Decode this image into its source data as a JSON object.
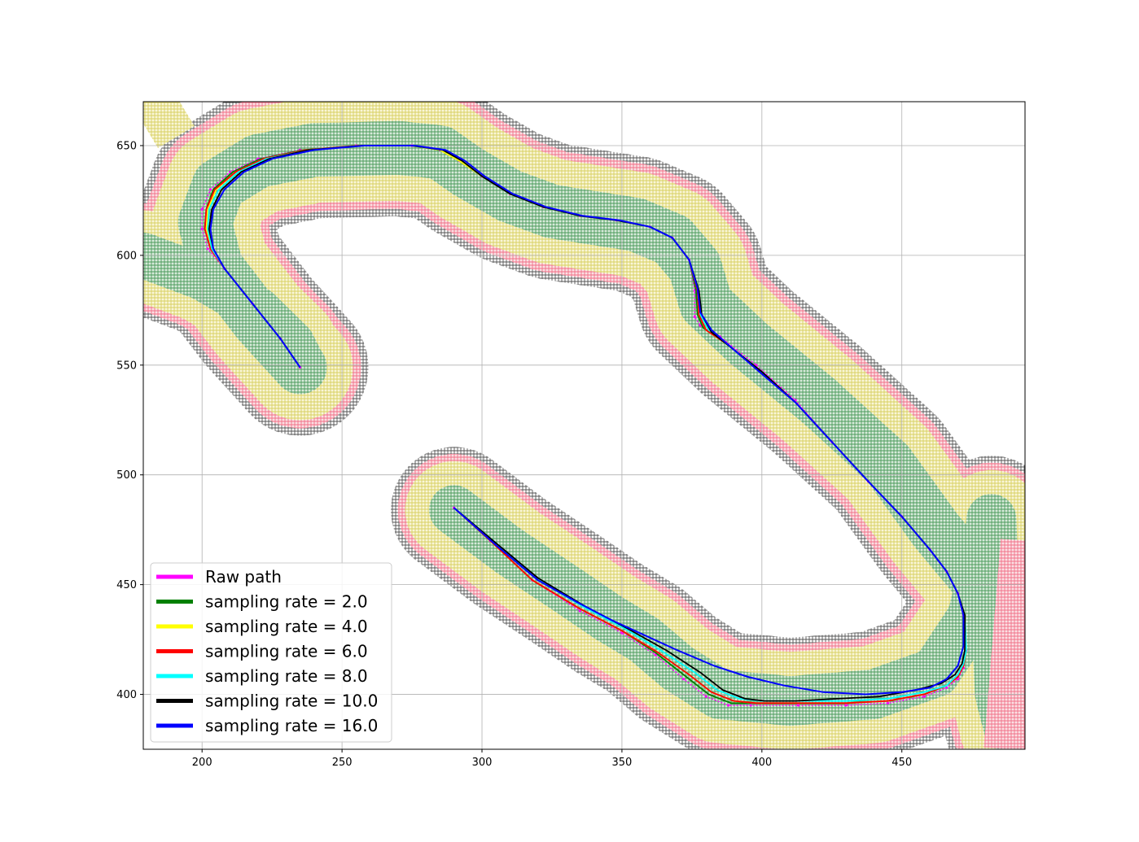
{
  "chart_data": {
    "type": "line",
    "title": "",
    "xlabel": "",
    "ylabel": "",
    "xlim": [
      179,
      494
    ],
    "ylim": [
      375,
      670
    ],
    "xticks": [
      200,
      250,
      300,
      350,
      400,
      450
    ],
    "yticks": [
      400,
      450,
      500,
      550,
      600,
      650
    ],
    "grid": true,
    "legend_position": "lower-left",
    "background_map": {
      "description_layers": [
        "obstacle",
        "danger",
        "caution",
        "safe"
      ],
      "colors": {
        "obstacle": "#555555",
        "danger": "#f08090",
        "caution": "#e8e070",
        "safe": "#4a9a5a"
      },
      "upper_corridor_centerline": [
        [
          235,
          549
        ],
        [
          220,
          570
        ],
        [
          205,
          595
        ],
        [
          201,
          615
        ],
        [
          206,
          632
        ],
        [
          220,
          643
        ],
        [
          240,
          648
        ],
        [
          270,
          649
        ],
        [
          285,
          647
        ],
        [
          295,
          638
        ],
        [
          310,
          627
        ],
        [
          325,
          620
        ],
        [
          340,
          617
        ],
        [
          355,
          614
        ],
        [
          368,
          607
        ],
        [
          376,
          595
        ],
        [
          380,
          578
        ],
        [
          395,
          560
        ],
        [
          420,
          534
        ],
        [
          445,
          505
        ],
        [
          462,
          475
        ],
        [
          475,
          455
        ],
        [
          485,
          440
        ],
        [
          494,
          420
        ]
      ],
      "lower_corridor_centerline": [
        [
          290,
          484
        ],
        [
          310,
          465
        ],
        [
          330,
          448
        ],
        [
          345,
          435
        ],
        [
          358,
          425
        ],
        [
          370,
          412
        ],
        [
          385,
          400
        ],
        [
          410,
          397
        ],
        [
          440,
          400
        ],
        [
          462,
          410
        ],
        [
          475,
          435
        ],
        [
          480,
          460
        ],
        [
          482,
          480
        ],
        [
          485,
          400
        ],
        [
          488,
          385
        ]
      ],
      "left_corridor_centerline": [
        [
          179,
          600
        ],
        [
          200,
          590
        ],
        [
          220,
          575
        ],
        [
          232,
          560
        ],
        [
          236,
          550
        ]
      ]
    },
    "series": [
      {
        "name": "Raw path",
        "color": "#ff00ff",
        "x": [
          235,
          228,
          218,
          208,
          202,
          200,
          200,
          203,
          210,
          220,
          235,
          255,
          275,
          285,
          292,
          300,
          310,
          322,
          335,
          348,
          360,
          368,
          374,
          376,
          376,
          378,
          385,
          398,
          412,
          425,
          438,
          450,
          460,
          466,
          470,
          472,
          473,
          472,
          470,
          466,
          458,
          445,
          430,
          413,
          396,
          388,
          380,
          372,
          362,
          350,
          335,
          318,
          303,
          290
        ],
        "y": [
          549,
          562,
          578,
          594,
          603,
          612,
          621,
          630,
          638,
          644,
          648,
          650,
          650,
          648,
          643,
          636,
          628,
          622,
          618,
          616,
          613,
          608,
          598,
          584,
          572,
          568,
          563,
          550,
          534,
          515,
          497,
          481,
          466,
          456,
          446,
          436,
          420,
          412,
          407,
          403,
          399,
          396,
          395,
          395,
          395,
          395,
          399,
          407,
          418,
          428,
          438,
          452,
          470,
          485
        ]
      },
      {
        "name": "sampling rate = 2.0",
        "color": "#008000",
        "x": [
          235,
          228,
          218,
          208,
          203,
          201,
          201.5,
          204,
          211,
          221,
          236,
          256,
          275,
          285,
          292,
          300,
          310,
          322,
          335,
          348,
          360,
          368,
          374,
          376.5,
          377,
          379,
          386,
          398,
          412,
          425,
          438,
          450,
          460,
          466,
          470,
          472.5,
          473,
          472,
          470,
          466,
          458,
          445,
          430,
          413,
          397,
          389,
          381,
          373,
          362,
          350,
          335,
          318,
          303,
          290
        ],
        "y": [
          549,
          562,
          578,
          594,
          603,
          612,
          621,
          630,
          638,
          644,
          648,
          650,
          650,
          648,
          643,
          636,
          628,
          622,
          618,
          616,
          613,
          608,
          598,
          584,
          573,
          567,
          561,
          549,
          533,
          515,
          497,
          481,
          466,
          456,
          446,
          436,
          420,
          413,
          408,
          404,
          400,
          397,
          396,
          396,
          396,
          396,
          400,
          408,
          419,
          429,
          439,
          452,
          470,
          485
        ]
      },
      {
        "name": "sampling rate = 4.0",
        "color": "#ffff00",
        "x": [
          235,
          228,
          218,
          208,
          203,
          201.5,
          202,
          205,
          212,
          222,
          237,
          256,
          275,
          285,
          292,
          300,
          310,
          322,
          335,
          348,
          360,
          368,
          374,
          377,
          377.5,
          380,
          387,
          399,
          412,
          425,
          438,
          450,
          460,
          466,
          470,
          472.5,
          473,
          472,
          470,
          466,
          458,
          445,
          430,
          413,
          398,
          390,
          382,
          374,
          363,
          350,
          335,
          318,
          303,
          290
        ],
        "y": [
          549,
          562,
          578,
          594,
          603,
          612,
          621,
          630,
          638,
          644,
          648,
          650,
          650,
          648,
          643,
          636,
          628,
          622,
          618,
          616,
          613,
          608,
          598,
          584,
          573,
          566,
          560,
          548,
          533,
          515,
          497,
          481,
          466,
          456,
          446,
          436,
          420,
          413,
          408,
          404,
          400,
          397,
          396,
          396,
          396,
          397,
          401,
          409,
          419,
          429,
          439,
          452,
          470,
          485
        ]
      },
      {
        "name": "sampling rate = 6.0",
        "color": "#ff0000",
        "x": [
          235,
          228,
          218,
          208,
          203,
          201,
          201.5,
          204.5,
          212,
          222,
          237,
          256,
          275,
          286,
          293,
          300,
          310,
          322,
          335,
          348,
          360,
          368,
          374,
          377,
          377.5,
          380,
          387,
          399,
          412,
          425,
          438,
          450,
          460,
          466,
          470,
          472.5,
          473,
          472,
          470,
          466,
          458,
          445,
          430,
          413,
          398,
          390,
          382,
          374,
          363,
          350,
          335,
          318,
          303,
          290
        ],
        "y": [
          549,
          562,
          578,
          594,
          603,
          612,
          621,
          630,
          638,
          644,
          648,
          650,
          650,
          648,
          643,
          636,
          628,
          622,
          618,
          616,
          613,
          608,
          598,
          584,
          573,
          566,
          560,
          548,
          533,
          515,
          497,
          481,
          466,
          456,
          446,
          436,
          420,
          413,
          408,
          404,
          400,
          397,
          396,
          396,
          396,
          397,
          401,
          409,
          419,
          429,
          439,
          452,
          470,
          485
        ]
      },
      {
        "name": "sampling rate = 8.0",
        "color": "#00ffff",
        "x": [
          235,
          228,
          218,
          208,
          203.5,
          202,
          202.5,
          206,
          213,
          223,
          238,
          257,
          275,
          286,
          293,
          300,
          310,
          322,
          335,
          348,
          360,
          368,
          374,
          377.5,
          378,
          381,
          388,
          399,
          412,
          425,
          438,
          450,
          460,
          466,
          470,
          472.5,
          473,
          472,
          470,
          466,
          458,
          445,
          430,
          414,
          400,
          392,
          384,
          376,
          364,
          351,
          336,
          319,
          304,
          290
        ],
        "y": [
          549,
          562,
          578,
          594,
          603,
          612,
          621,
          630,
          638,
          644,
          648,
          650,
          650,
          648,
          643,
          636,
          628,
          622,
          618,
          616,
          613,
          608,
          598,
          584,
          573,
          566,
          559,
          548,
          533,
          515,
          497,
          481,
          466,
          456,
          446,
          436,
          420,
          414,
          409,
          404,
          401,
          398,
          397,
          397,
          397,
          398,
          402,
          410,
          420,
          430,
          440,
          453,
          470,
          485
        ]
      },
      {
        "name": "sampling rate = 10.0",
        "color": "#000000",
        "x": [
          235,
          228,
          218,
          208,
          204,
          202.5,
          203.5,
          207,
          214,
          224,
          238,
          257,
          275,
          286,
          293,
          300,
          310,
          322,
          335,
          348,
          360,
          368,
          374,
          377.5,
          378.5,
          382,
          389,
          400,
          412,
          425,
          438,
          450,
          460,
          466,
          470,
          472.5,
          472.5,
          471.5,
          469,
          464,
          455,
          442,
          427,
          412,
          401,
          394,
          386,
          378,
          366,
          352,
          337,
          320,
          304,
          290
        ],
        "y": [
          549,
          562,
          578,
          594,
          603,
          612,
          621,
          630,
          638,
          644,
          648,
          650,
          650,
          648,
          643,
          636,
          628,
          622,
          618,
          616,
          613,
          608,
          598,
          584,
          573,
          565,
          558,
          547,
          533,
          515,
          497,
          481,
          466,
          456,
          446,
          436,
          420,
          414,
          409,
          405,
          402,
          399,
          398,
          397,
          397,
          398,
          402,
          410,
          420,
          430,
          440,
          453,
          470,
          485
        ]
      },
      {
        "name": "sampling rate = 16.0",
        "color": "#0000ff",
        "x": [
          235,
          228,
          218,
          208,
          204,
          203,
          204,
          208,
          215,
          225,
          240,
          258,
          276,
          287,
          294,
          301,
          311,
          323,
          336,
          349,
          360,
          368,
          374,
          377,
          378,
          382,
          390,
          400,
          412,
          425,
          438,
          450,
          460,
          466,
          470,
          472,
          472,
          470,
          466,
          460,
          450,
          437,
          422,
          408,
          395,
          383,
          370,
          358,
          346,
          334,
          320,
          305,
          290
        ],
        "y": [
          549,
          562,
          578,
          594,
          603,
          612,
          621,
          630,
          638,
          644,
          648,
          650,
          650,
          648,
          643,
          636,
          628,
          622,
          618,
          616,
          613,
          608,
          598,
          585,
          574,
          566,
          557,
          546,
          533,
          515,
          497,
          481,
          466,
          456,
          446,
          436,
          422,
          413,
          407,
          403,
          401,
          400,
          401,
          404,
          408,
          413,
          420,
          427,
          434,
          442,
          452,
          468,
          485
        ]
      }
    ]
  }
}
